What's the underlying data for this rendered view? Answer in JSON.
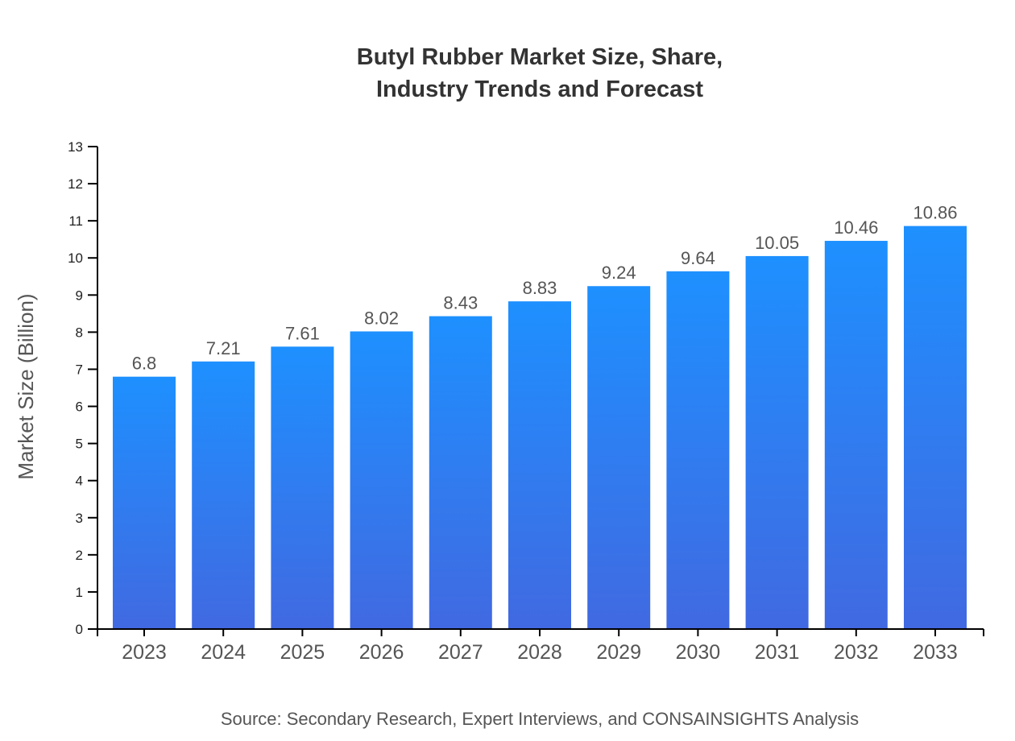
{
  "chart_data": {
    "type": "bar",
    "title_lines": [
      "Butyl Rubber Market Size, Share,",
      "Industry Trends and Forecast"
    ],
    "xlabel": "",
    "ylabel": "Market Size (Billion)",
    "categories": [
      "2023",
      "2024",
      "2025",
      "2026",
      "2027",
      "2028",
      "2029",
      "2030",
      "2031",
      "2032",
      "2033"
    ],
    "values": [
      6.8,
      7.21,
      7.61,
      8.02,
      8.43,
      8.83,
      9.24,
      9.64,
      10.05,
      10.46,
      10.86
    ],
    "ylim": [
      0,
      13
    ],
    "yticks": [
      0,
      1,
      2,
      3,
      4,
      5,
      6,
      7,
      8,
      9,
      10,
      11,
      12,
      13
    ],
    "grid": false,
    "colors": {
      "bar_top": "#1e90ff",
      "bar_bottom": "#4169e1"
    },
    "source": "Source: Secondary Research, Expert Interviews, and CONSAINSIGHTS Analysis"
  }
}
